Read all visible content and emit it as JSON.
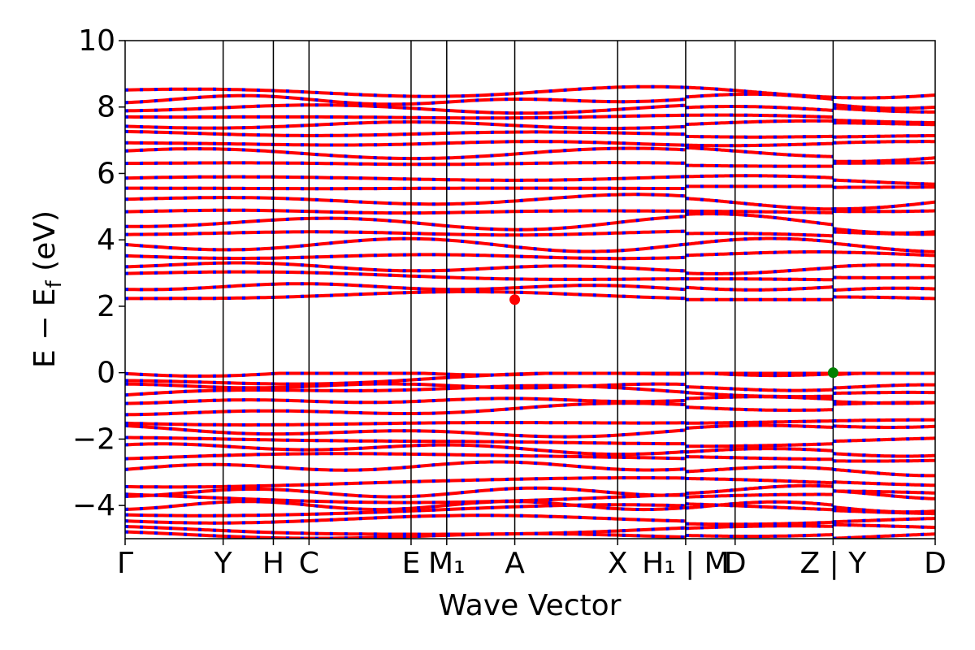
{
  "chart_data": {
    "type": "line",
    "title": "",
    "xlabel": "Wave Vector",
    "ylabel": {
      "main": "E − E",
      "sub": "f",
      "unit": " (eV)"
    },
    "ylim": [
      -5,
      10
    ],
    "yticks": [
      -4,
      -2,
      0,
      2,
      4,
      6,
      8,
      10
    ],
    "ytick_labels": [
      "−4",
      "−2",
      "0",
      "2",
      "4",
      "6",
      "8",
      "10"
    ],
    "xlim": [
      0,
      1
    ],
    "kpoints": [
      {
        "label": "Γ",
        "x": 0.0
      },
      {
        "label": "Y",
        "x": 0.121
      },
      {
        "label": "H",
        "x": 0.183
      },
      {
        "label": "C",
        "x": 0.227
      },
      {
        "label": "E",
        "x": 0.353
      },
      {
        "label": "M₁",
        "x": 0.397
      },
      {
        "label": "A",
        "x": 0.481
      },
      {
        "label": "X",
        "x": 0.608
      },
      {
        "label": "H₁ | M",
        "x": 0.692
      },
      {
        "label": "D",
        "x": 0.753
      },
      {
        "label": "Z | Y",
        "x": 0.874
      },
      {
        "label": "D",
        "x": 1.0
      }
    ],
    "path_breaks": [
      0.692,
      0.874
    ],
    "series_colors": {
      "spin_up": "#ff0000",
      "spin_down": "#0000ff"
    },
    "markers": [
      {
        "name": "cbm",
        "x": 0.481,
        "y": 2.2,
        "color": "#ff0000"
      },
      {
        "name": "vbm",
        "x": 0.874,
        "y": 0.0,
        "color": "#008000"
      }
    ],
    "band_count": 32,
    "grid": false,
    "legend": "none"
  }
}
